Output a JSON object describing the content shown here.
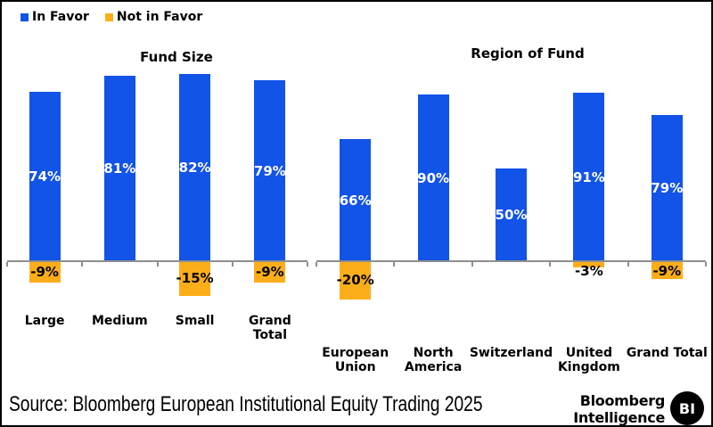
{
  "legend": {
    "items": [
      {
        "label": "In Favor",
        "color": "#1253E8"
      },
      {
        "label": "Not in Favor",
        "color": "#FCAE1A"
      }
    ]
  },
  "chart_data": {
    "type": "bar",
    "orientation": "vertical",
    "grid": false,
    "legend_position": "top-left",
    "value_suffix": "%",
    "colors": {
      "in_favor": "#1253E8",
      "not_in_favor": "#FCAE1A",
      "axis": "#8f8f8f",
      "positive_label": "#FFFFFF",
      "negative_label": "#000000"
    },
    "panels": [
      {
        "title": "Fund Size",
        "categories": [
          {
            "label": "Large",
            "lines": [
              "Large"
            ],
            "in_favor": 74,
            "not_in_favor": -9
          },
          {
            "label": "Medium",
            "lines": [
              "Medium"
            ],
            "in_favor": 81,
            "not_in_favor": null
          },
          {
            "label": "Small",
            "lines": [
              "Small"
            ],
            "in_favor": 82,
            "not_in_favor": -15
          },
          {
            "label": "Grand Total",
            "lines": [
              "Grand",
              "Total"
            ],
            "in_favor": 79,
            "not_in_favor": -9
          }
        ]
      },
      {
        "title": "Region of Fund",
        "categories": [
          {
            "label": "European Union",
            "lines": [
              "European",
              "Union"
            ],
            "in_favor": 66,
            "not_in_favor": -20
          },
          {
            "label": "North America",
            "lines": [
              "North",
              "America"
            ],
            "in_favor": 90,
            "not_in_favor": null
          },
          {
            "label": "Switzerland",
            "lines": [
              "Switzerland"
            ],
            "in_favor": 50,
            "not_in_favor": null
          },
          {
            "label": "United Kingdom",
            "lines": [
              "United",
              "Kingdom"
            ],
            "in_favor": 91,
            "not_in_favor": -3
          },
          {
            "label": "Grand Total",
            "lines": [
              "Grand Total"
            ],
            "in_favor": 79,
            "not_in_favor": -9
          }
        ]
      }
    ]
  },
  "footer": {
    "source": "Source: Bloomberg European Institutional Equity Trading 2025",
    "brand": {
      "line1": "Bloomberg",
      "line2": "Intelligence",
      "badge": "BI"
    }
  }
}
